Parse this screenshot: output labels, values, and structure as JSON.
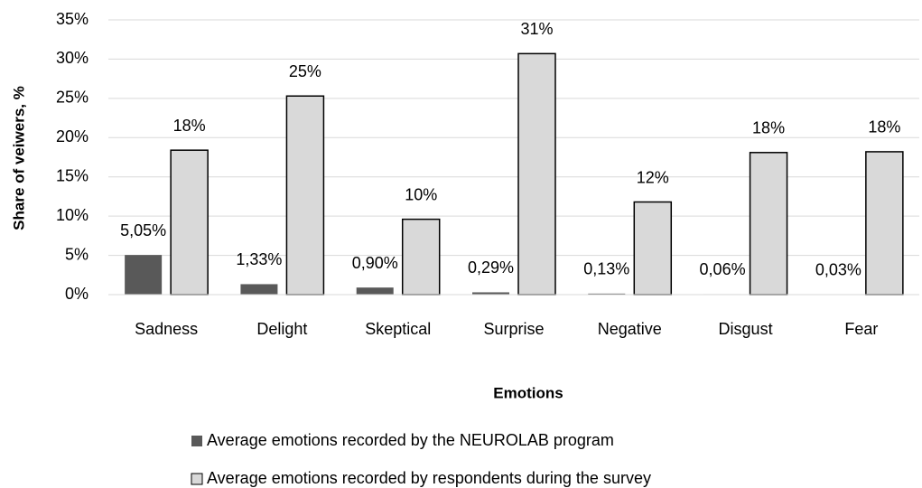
{
  "chart_data": {
    "type": "bar",
    "x_label": "Emotions",
    "y_label": "Share of veiwers, %",
    "categories": [
      "Sadness",
      "Delight",
      "Skeptical",
      "Surprise",
      "Negative",
      "Disgust",
      "Fear"
    ],
    "series": [
      {
        "name": "Average emotions recorded by the NEUROLAB program",
        "color": "#595959",
        "values": [
          5.05,
          1.33,
          0.9,
          0.29,
          0.13,
          0.06,
          0.03
        ],
        "value_labels": [
          "5,05%",
          "1,33%",
          "0,90%",
          "0,29%",
          "0,13%",
          "0,06%",
          "0,03%"
        ]
      },
      {
        "name": "Average emotions recorded by respondents during the survey",
        "color": "#d9d9d9",
        "values": [
          18.4,
          25.3,
          9.6,
          30.7,
          11.8,
          18.1,
          18.2
        ],
        "value_labels": [
          "18%",
          "25%",
          "10%",
          "31%",
          "12%",
          "18%",
          "18%"
        ]
      }
    ],
    "ylim": [
      0,
      35
    ],
    "yticks": [
      {
        "value": 0,
        "label": "0%"
      },
      {
        "value": 5,
        "label": "5%"
      },
      {
        "value": 10,
        "label": "10%"
      },
      {
        "value": 15,
        "label": "15%"
      },
      {
        "value": 20,
        "label": "20%"
      },
      {
        "value": 25,
        "label": "25%"
      },
      {
        "value": 30,
        "label": "30%"
      },
      {
        "value": 35,
        "label": "35%"
      }
    ],
    "grid": true
  }
}
